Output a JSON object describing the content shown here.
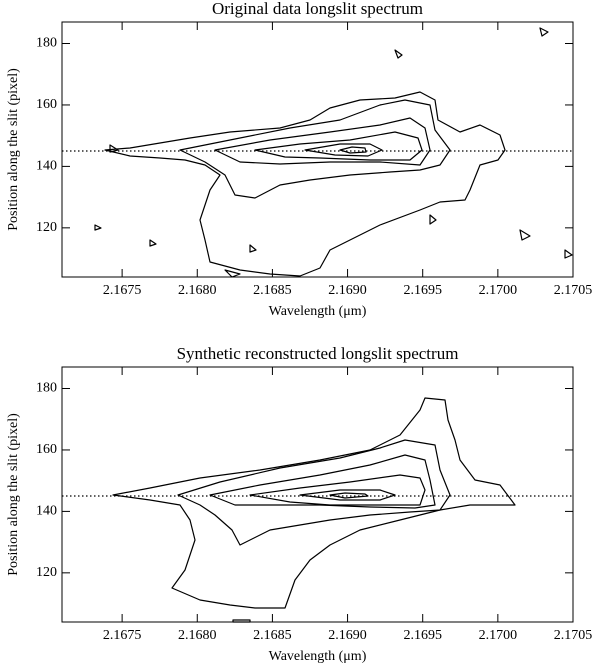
{
  "chart_data": [
    {
      "type": "contour",
      "title": "Original data longslit spectrum",
      "xlabel": "Wavelength (μm)",
      "ylabel": "Position along the slit (pixel)",
      "xlim": [
        2.1671,
        2.1705
      ],
      "ylim": [
        104,
        187
      ],
      "xticks": [
        2.1675,
        {
          "value": 2.168,
          "label": "2.1680"
        },
        2.1685,
        {
          "value": 2.169,
          "label": "2.1690"
        },
        2.1695,
        {
          "value": 2.17,
          "label": "2.1700"
        },
        2.1705
      ],
      "yticks": [
        120,
        140,
        160,
        180
      ],
      "hline": 145
    },
    {
      "type": "contour",
      "title": "Synthetic reconstructed longslit spectrum",
      "xlabel": "Wavelength (μm)",
      "ylabel": "Position along the slit (pixel)",
      "xlim": [
        2.1671,
        2.1705
      ],
      "ylim": [
        104,
        187
      ],
      "xticks": [
        2.1675,
        {
          "value": 2.168,
          "label": "2.1680"
        },
        2.1685,
        {
          "value": 2.169,
          "label": "2.1690"
        },
        2.1695,
        {
          "value": 2.17,
          "label": "2.1700"
        },
        2.1705
      ],
      "yticks": [
        120,
        140,
        160,
        180
      ],
      "hline": 145
    }
  ]
}
